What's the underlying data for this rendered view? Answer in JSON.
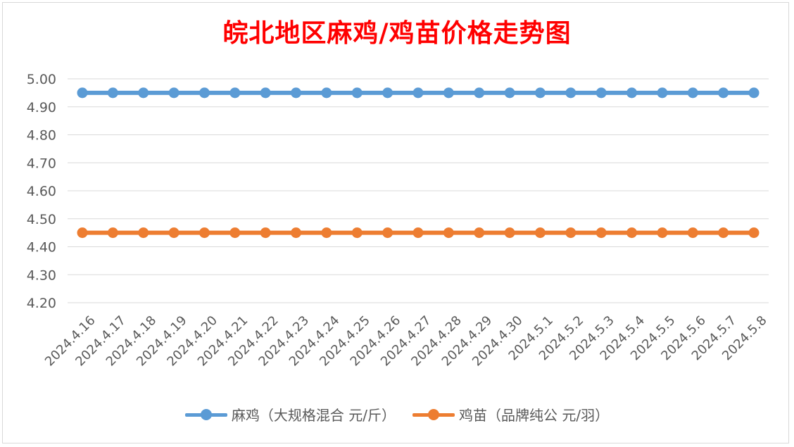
{
  "chart_data": {
    "type": "line",
    "title": "皖北地区麻鸡/鸡苗价格走势图",
    "categories": [
      "2024.4.16",
      "2024.4.17",
      "2024.4.18",
      "2024.4.19",
      "2024.4.20",
      "2024.4.21",
      "2024.4.22",
      "2024.4.23",
      "2024.4.24",
      "2024.4.25",
      "2024.4.26",
      "2024.4.27",
      "2024.4.28",
      "2024.4.29",
      "2024.4.30",
      "2024.5.1",
      "2024.5.2",
      "2024.5.3",
      "2024.5.4",
      "2024.5.5",
      "2024.5.6",
      "2024.5.7",
      "2024.5.8"
    ],
    "series": [
      {
        "name": "麻鸡（大规格混合 元/斤）",
        "color": "#5b9bd5",
        "values": [
          4.95,
          4.95,
          4.95,
          4.95,
          4.95,
          4.95,
          4.95,
          4.95,
          4.95,
          4.95,
          4.95,
          4.95,
          4.95,
          4.95,
          4.95,
          4.95,
          4.95,
          4.95,
          4.95,
          4.95,
          4.95,
          4.95,
          4.95
        ]
      },
      {
        "name": "鸡苗（品牌纯公 元/羽）",
        "color": "#ed7d31",
        "values": [
          4.45,
          4.45,
          4.45,
          4.45,
          4.45,
          4.45,
          4.45,
          4.45,
          4.45,
          4.45,
          4.45,
          4.45,
          4.45,
          4.45,
          4.45,
          4.45,
          4.45,
          4.45,
          4.45,
          4.45,
          4.45,
          4.45,
          4.45
        ]
      }
    ],
    "yticks": [
      "4.20",
      "4.30",
      "4.40",
      "4.50",
      "4.60",
      "4.70",
      "4.80",
      "4.90",
      "5.00"
    ],
    "ylim": [
      4.2,
      5.0
    ],
    "grid": true,
    "legend": "bottom"
  }
}
